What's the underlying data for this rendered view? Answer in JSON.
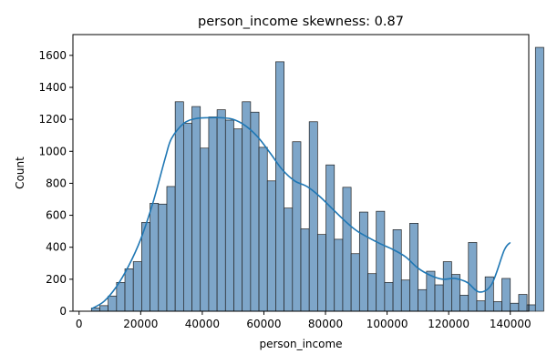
{
  "chart_data": {
    "type": "bar",
    "title": "person_income skewness: 0.87",
    "xlabel": "person_income",
    "ylabel": "Count",
    "xlim": [
      -2000,
      146000
    ],
    "ylim": [
      0,
      1730
    ],
    "xticks": [
      0,
      20000,
      40000,
      60000,
      80000,
      100000,
      120000,
      140000
    ],
    "xtick_labels": [
      "0",
      "20000",
      "40000",
      "60000",
      "80000",
      "100000",
      "120000",
      "140000"
    ],
    "yticks": [
      0,
      200,
      400,
      600,
      800,
      1000,
      1200,
      1400,
      1600
    ],
    "ytick_labels": [
      "0",
      "200",
      "400",
      "600",
      "800",
      "1000",
      "1200",
      "1400",
      "1600"
    ],
    "bin_start": 4000,
    "bin_width": 2720,
    "values": [
      20,
      35,
      95,
      180,
      265,
      310,
      555,
      675,
      670,
      780,
      1310,
      1175,
      1280,
      1020,
      1215,
      1260,
      1195,
      1140,
      1310,
      1245,
      1025,
      815,
      1560,
      645,
      1060,
      515,
      1185,
      480,
      915,
      450,
      775,
      360,
      620,
      235,
      625,
      180,
      510,
      195,
      550,
      135,
      250,
      165,
      310,
      230,
      100,
      430,
      65,
      215,
      60,
      205,
      50,
      105,
      40,
      1650
    ],
    "kde": {
      "x": [
        4000,
        8000,
        12000,
        16000,
        20000,
        24000,
        28000,
        30000,
        34000,
        38000,
        42000,
        46000,
        50000,
        54000,
        58000,
        62000,
        66000,
        70000,
        74000,
        78000,
        82000,
        86000,
        90000,
        94000,
        98000,
        102000,
        106000,
        110000,
        114000,
        118000,
        122000,
        126000,
        130000,
        134000,
        138000,
        140000
      ],
      "y": [
        15,
        60,
        150,
        280,
        450,
        680,
        960,
        1080,
        1175,
        1205,
        1210,
        1210,
        1200,
        1160,
        1090,
        990,
        885,
        815,
        780,
        720,
        645,
        570,
        505,
        460,
        420,
        385,
        340,
        270,
        225,
        200,
        205,
        180,
        120,
        170,
        380,
        430
      ]
    },
    "bar_color": "#7ea6c9",
    "bar_edge_color": "#222222",
    "kde_color": "#1f77b4",
    "grid": false,
    "legend": false
  }
}
